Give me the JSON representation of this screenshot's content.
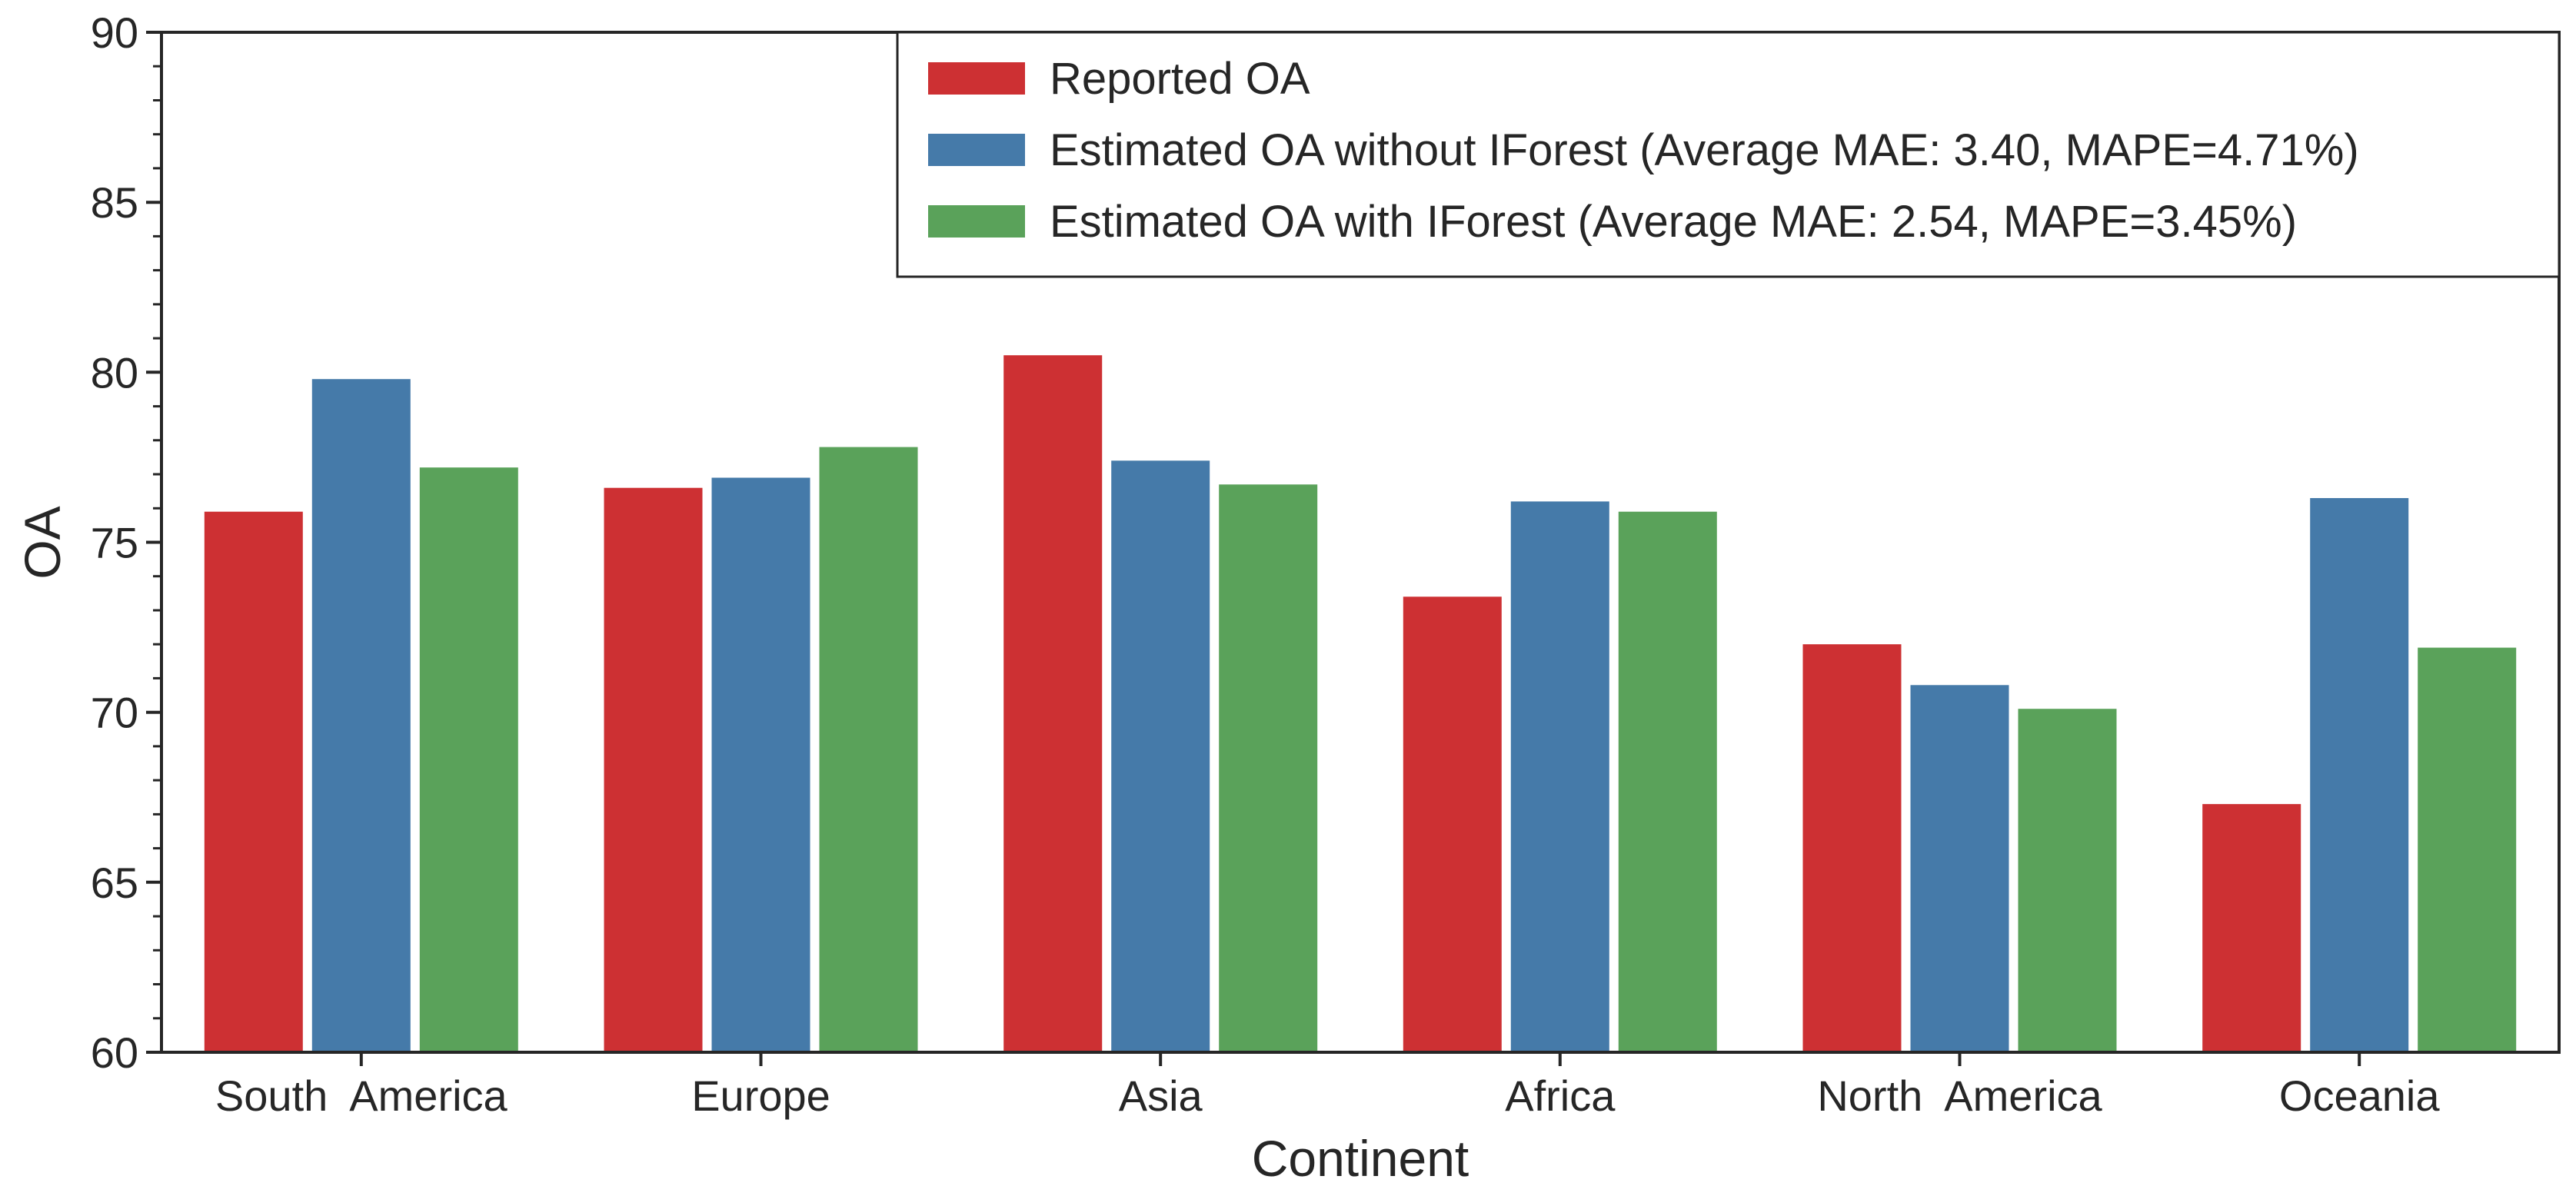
{
  "chart_data": {
    "type": "bar",
    "title": "",
    "xlabel": "Continent",
    "ylabel": "OA",
    "ylim": [
      60,
      90
    ],
    "yticks": [
      60,
      65,
      70,
      75,
      80,
      85,
      90
    ],
    "categories": [
      "South  America",
      "Europe",
      "Asia",
      "Africa",
      "North  America",
      "Oceania"
    ],
    "series": [
      {
        "name": "Reported OA",
        "color": "#cd3033",
        "values": [
          75.9,
          76.6,
          80.5,
          73.4,
          72.0,
          67.3
        ]
      },
      {
        "name": "Estimated OA without IForest (Average MAE: 3.40, MAPE=4.71%)",
        "color": "#457aa9",
        "values": [
          79.8,
          76.9,
          77.4,
          76.2,
          70.8,
          76.3
        ]
      },
      {
        "name": "Estimated OA with IForest (Average MAE: 2.54, MAPE=3.45%)",
        "color": "#5aa25a",
        "values": [
          77.2,
          77.8,
          76.7,
          75.9,
          70.1,
          71.9
        ]
      }
    ],
    "grid": false,
    "legend_position": "top-right"
  }
}
